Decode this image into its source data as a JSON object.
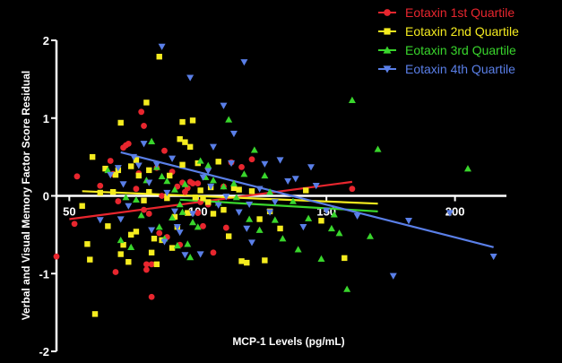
{
  "chart_data": {
    "type": "scatter",
    "title": "",
    "xlabel": "MCP-1 Levels (pg/mL)",
    "ylabel": "Verbal and Visual Memory Factor Score Residual",
    "xlim": [
      45,
      220
    ],
    "ylim": [
      -2,
      2
    ],
    "x_ticks": [
      {
        "value": 50,
        "label": "50"
      },
      {
        "value": 100,
        "label": "100"
      },
      {
        "value": 150,
        "label": "150"
      },
      {
        "value": 200,
        "label": "200"
      }
    ],
    "y_ticks": [
      {
        "value": 2,
        "label": "2"
      },
      {
        "value": 1,
        "label": "1"
      },
      {
        "value": 0,
        "label": "0"
      },
      {
        "value": -1,
        "label": "-1"
      },
      {
        "value": -2,
        "label": "-2"
      }
    ],
    "grid": false,
    "legend_position": "top-right",
    "background_color": "#000000",
    "axis_color": "#ffffff",
    "series": [
      {
        "name": "Eotaxin 1st Quartile",
        "color": "#e8262e",
        "marker": "circle",
        "trend_line": {
          "x": [
            50,
            160
          ],
          "y": [
            -0.3,
            0.18
          ]
        },
        "points": [
          [
            45,
            -0.78
          ],
          [
            52,
            -0.36
          ],
          [
            53,
            0.25
          ],
          [
            62,
            0.13
          ],
          [
            66,
            0.45
          ],
          [
            67,
            0.28
          ],
          [
            68,
            -0.98
          ],
          [
            69,
            -0.07
          ],
          [
            71,
            0.62
          ],
          [
            72,
            0.65
          ],
          [
            73,
            0.67
          ],
          [
            76,
            0.09
          ],
          [
            77,
            0.29
          ],
          [
            78,
            1.08
          ],
          [
            79,
            0.9
          ],
          [
            79,
            -0.18
          ],
          [
            80,
            -0.88
          ],
          [
            80,
            -0.95
          ],
          [
            81,
            -0.23
          ],
          [
            82,
            -1.3
          ],
          [
            82,
            -0.88
          ],
          [
            84,
            0.36
          ],
          [
            85,
            -0.48
          ],
          [
            86,
            0.0
          ],
          [
            87,
            0.58
          ],
          [
            88,
            -0.53
          ],
          [
            90,
            0.31
          ],
          [
            92,
            0.12
          ],
          [
            93,
            -0.63
          ],
          [
            94,
            0.17
          ],
          [
            95,
            0.05
          ],
          [
            96,
            0.1
          ],
          [
            97,
            0.18
          ],
          [
            98,
            0.16
          ],
          [
            100,
            0.16
          ],
          [
            100,
            -0.22
          ],
          [
            101,
            -0.08
          ],
          [
            102,
            -0.39
          ],
          [
            104,
            -0.11
          ],
          [
            104,
            0.35
          ],
          [
            106,
            -0.73
          ],
          [
            110,
            0.12
          ],
          [
            111,
            -0.41
          ],
          [
            113,
            0.43
          ],
          [
            117,
            0.37
          ],
          [
            121,
            0.47
          ],
          [
            160,
            0.09
          ]
        ]
      },
      {
        "name": "Eotaxin 2nd Quartile",
        "color": "#f5ec1f",
        "marker": "square",
        "trend_line": {
          "x": [
            55,
            170
          ],
          "y": [
            0.06,
            -0.1
          ]
        },
        "points": [
          [
            55,
            -0.13
          ],
          [
            57,
            -0.62
          ],
          [
            58,
            -0.82
          ],
          [
            59,
            0.5
          ],
          [
            60,
            -1.52
          ],
          [
            62,
            0.04
          ],
          [
            64,
            0.35
          ],
          [
            65,
            -0.39
          ],
          [
            67,
            0.05
          ],
          [
            68,
            0.27
          ],
          [
            69,
            0.33
          ],
          [
            70,
            0.94
          ],
          [
            70,
            -0.75
          ],
          [
            71,
            -0.63
          ],
          [
            73,
            -0.85
          ],
          [
            74,
            -0.5
          ],
          [
            74,
            0.38
          ],
          [
            76,
            -0.46
          ],
          [
            76,
            0.46
          ],
          [
            77,
            0.26
          ],
          [
            79,
            -0.06
          ],
          [
            80,
            1.2
          ],
          [
            81,
            0.33
          ],
          [
            81,
            0.05
          ],
          [
            82,
            -0.73
          ],
          [
            83,
            -0.55
          ],
          [
            84,
            -0.88
          ],
          [
            85,
            1.79
          ],
          [
            86,
            -0.57
          ],
          [
            88,
            -0.03
          ],
          [
            89,
            0.26
          ],
          [
            90,
            -0.67
          ],
          [
            91,
            -0.27
          ],
          [
            92,
            -0.4
          ],
          [
            93,
            0.73
          ],
          [
            94,
            0.95
          ],
          [
            94,
            0.4
          ],
          [
            95,
            0.69
          ],
          [
            96,
            -0.22
          ],
          [
            97,
            0.63
          ],
          [
            98,
            0.97
          ],
          [
            99,
            -0.02
          ],
          [
            100,
            0.42
          ],
          [
            101,
            0.07
          ],
          [
            102,
            -0.03
          ],
          [
            104,
            -0.08
          ],
          [
            105,
            0.11
          ],
          [
            106,
            -0.23
          ],
          [
            108,
            0.44
          ],
          [
            110,
            -0.18
          ],
          [
            112,
            -0.52
          ],
          [
            114,
            0.1
          ],
          [
            116,
            0.08
          ],
          [
            117,
            -0.84
          ],
          [
            119,
            -0.86
          ],
          [
            121,
            0.06
          ],
          [
            124,
            -0.3
          ],
          [
            126,
            -0.83
          ],
          [
            128,
            -0.2
          ],
          [
            132,
            -0.42
          ],
          [
            142,
            0.07
          ],
          [
            148,
            -0.32
          ],
          [
            157,
            -0.8
          ]
        ]
      },
      {
        "name": "Eotaxin 3rd Quartile",
        "color": "#39d62c",
        "marker": "triangle",
        "trend_line": {
          "x": [
            93,
            170
          ],
          "y": [
            -0.05,
            -0.2
          ]
        },
        "points": [
          [
            65,
            0.33
          ],
          [
            70,
            -0.57
          ],
          [
            72,
            -0.02
          ],
          [
            74,
            -0.66
          ],
          [
            76,
            -0.05
          ],
          [
            78,
            -0.25
          ],
          [
            80,
            0.2
          ],
          [
            82,
            0.7
          ],
          [
            84,
            0.37
          ],
          [
            85,
            -0.4
          ],
          [
            86,
            0.25
          ],
          [
            87,
            -0.55
          ],
          [
            88,
            0.19
          ],
          [
            90,
            -0.28
          ],
          [
            91,
            0.08
          ],
          [
            92,
            -0.64
          ],
          [
            93,
            -0.11
          ],
          [
            94,
            -0.21
          ],
          [
            95,
            0.15
          ],
          [
            96,
            -0.62
          ],
          [
            97,
            -0.79
          ],
          [
            98,
            -0.34
          ],
          [
            100,
            -0.4
          ],
          [
            101,
            0.45
          ],
          [
            103,
            0.24
          ],
          [
            104,
            0.39
          ],
          [
            106,
            0.2
          ],
          [
            108,
            -0.09
          ],
          [
            110,
            0.12
          ],
          [
            112,
            0.98
          ],
          [
            114,
            0.16
          ],
          [
            115,
            -0.02
          ],
          [
            118,
            0.28
          ],
          [
            120,
            -0.3
          ],
          [
            122,
            0.59
          ],
          [
            124,
            -0.44
          ],
          [
            126,
            0.26
          ],
          [
            128,
            0.05
          ],
          [
            130,
            -0.31
          ],
          [
            133,
            -0.55
          ],
          [
            137,
            -0.07
          ],
          [
            139,
            -0.69
          ],
          [
            143,
            -0.29
          ],
          [
            148,
            -0.81
          ],
          [
            152,
            -0.42
          ],
          [
            153,
            -0.24
          ],
          [
            155,
            -0.48
          ],
          [
            158,
            -1.2
          ],
          [
            160,
            1.23
          ],
          [
            167,
            -0.52
          ],
          [
            170,
            0.6
          ],
          [
            205,
            0.35
          ]
        ]
      },
      {
        "name": "Eotaxin 4th Quartile",
        "color": "#5a7fe8",
        "marker": "triangle-down",
        "trend_line": {
          "x": [
            70,
            215
          ],
          "y": [
            0.56,
            -0.66
          ]
        },
        "points": [
          [
            62,
            -0.31
          ],
          [
            66,
            0.27
          ],
          [
            69,
            0.36
          ],
          [
            70,
            -0.3
          ],
          [
            71,
            0.15
          ],
          [
            73,
            -0.13
          ],
          [
            75,
            0.5
          ],
          [
            77,
            0.39
          ],
          [
            79,
            0.67
          ],
          [
            81,
            0.17
          ],
          [
            82,
            -0.44
          ],
          [
            84,
            0.4
          ],
          [
            86,
            1.92
          ],
          [
            87,
            -0.59
          ],
          [
            88,
            0.04
          ],
          [
            90,
            0.48
          ],
          [
            91,
            -0.2
          ],
          [
            92,
            -0.4
          ],
          [
            93,
            -0.47
          ],
          [
            95,
            -0.76
          ],
          [
            97,
            1.52
          ],
          [
            98,
            -0.23
          ],
          [
            101,
            -0.75
          ],
          [
            102,
            0.24
          ],
          [
            104,
            0.32
          ],
          [
            105,
            0.12
          ],
          [
            106,
            0.63
          ],
          [
            108,
            -0.12
          ],
          [
            110,
            1.16
          ],
          [
            111,
            -0.01
          ],
          [
            113,
            0.42
          ],
          [
            114,
            0.8
          ],
          [
            116,
            -0.21
          ],
          [
            118,
            1.72
          ],
          [
            119,
            -0.42
          ],
          [
            120,
            -0.11
          ],
          [
            121,
            -0.6
          ],
          [
            124,
            0.09
          ],
          [
            126,
            0.41
          ],
          [
            128,
            -0.21
          ],
          [
            130,
            -0.08
          ],
          [
            132,
            0.46
          ],
          [
            135,
            0.19
          ],
          [
            138,
            0.22
          ],
          [
            141,
            -0.4
          ],
          [
            144,
            0.37
          ],
          [
            146,
            0.13
          ],
          [
            150,
            -0.19
          ],
          [
            162,
            -0.26
          ],
          [
            176,
            -1.03
          ],
          [
            182,
            -0.32
          ],
          [
            198,
            -0.22
          ],
          [
            215,
            -0.78
          ]
        ]
      }
    ]
  }
}
